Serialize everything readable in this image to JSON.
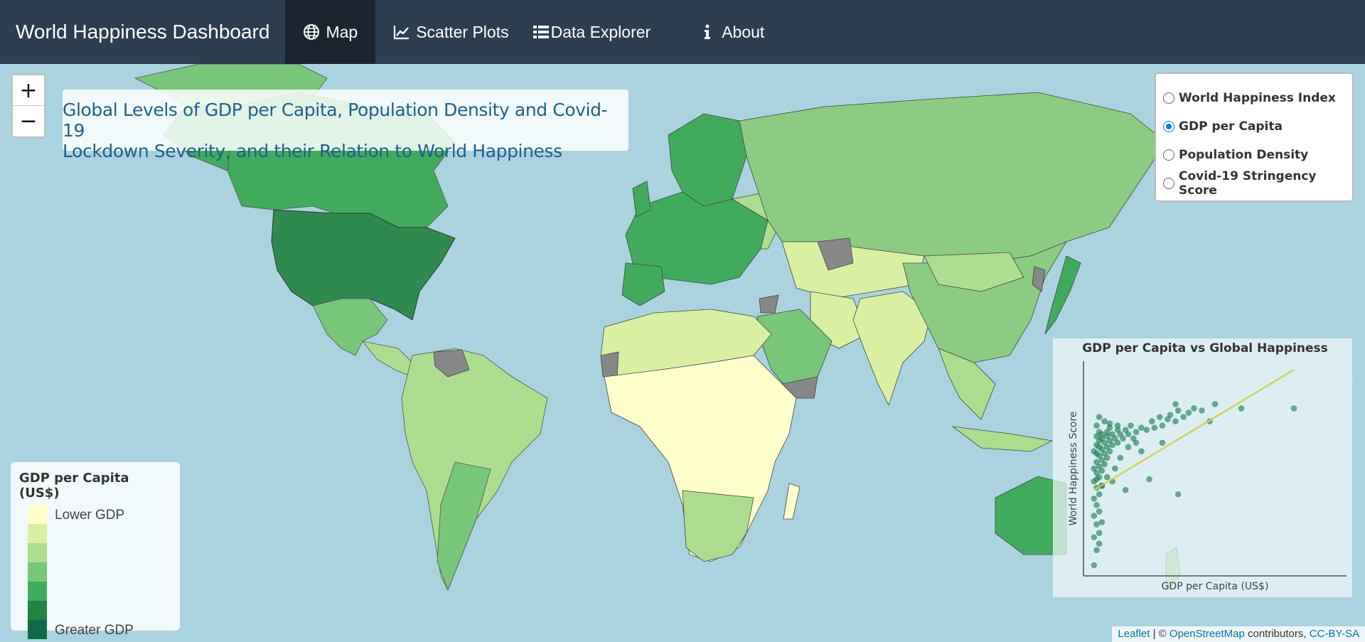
{
  "navbar": {
    "brand": "World Happiness Dashboard",
    "items": [
      {
        "label": "Map",
        "icon": "globe-icon",
        "active": true
      },
      {
        "label": "Scatter Plots",
        "icon": "line-chart-icon",
        "active": false
      },
      {
        "label": "Data Explorer",
        "icon": "list-icon",
        "active": false
      },
      {
        "label": "About",
        "icon": "info-icon",
        "active": false
      }
    ],
    "bg_color": "#2c3e50",
    "active_color": "#1a252f"
  },
  "map": {
    "zoom_in": "+",
    "zoom_out": "−",
    "title_line1": "Global Levels of GDP per Capita, Population Density and Covid-19",
    "title_line2": "Lockdown Severity, and their Relation to World Happiness",
    "layers": [
      {
        "label": "World Happiness Index",
        "checked": false
      },
      {
        "label": "GDP per Capita",
        "checked": true
      },
      {
        "label": "Population Density",
        "checked": false
      },
      {
        "label": "Covid-19 Stringency Score",
        "checked": false
      }
    ],
    "legend": {
      "title": "GDP per Capita (US$)",
      "low_label": "Lower GDP",
      "high_label": "Greater GDP",
      "colors": [
        "#ffffcc",
        "#d9f0a3",
        "#addd8e",
        "#78c679",
        "#41ab5d",
        "#238443",
        "#116a4a"
      ]
    },
    "attribution": {
      "leaflet": "Leaflet",
      "sep": " | © ",
      "osm": "OpenStreetMap",
      "contributors": " contributors, ",
      "license": "CC-BY-SA"
    }
  },
  "chart_data": {
    "type": "scatter",
    "title": "GDP per Capita vs Global Happiness",
    "xlabel": "GDP per Capita (US$)",
    "ylabel": "World Happiness Score",
    "grid": false,
    "point_color": "#1a7a50",
    "trend_color": "#d4cf4a",
    "points": [
      [
        0.04,
        0.05
      ],
      [
        0.05,
        0.12
      ],
      [
        0.04,
        0.18
      ],
      [
        0.06,
        0.2
      ],
      [
        0.05,
        0.24
      ],
      [
        0.04,
        0.28
      ],
      [
        0.06,
        0.3
      ],
      [
        0.05,
        0.33
      ],
      [
        0.04,
        0.36
      ],
      [
        0.06,
        0.38
      ],
      [
        0.05,
        0.41
      ],
      [
        0.07,
        0.42
      ],
      [
        0.04,
        0.44
      ],
      [
        0.06,
        0.46
      ],
      [
        0.05,
        0.48
      ],
      [
        0.07,
        0.49
      ],
      [
        0.04,
        0.5
      ],
      [
        0.06,
        0.51
      ],
      [
        0.08,
        0.52
      ],
      [
        0.05,
        0.53
      ],
      [
        0.07,
        0.54
      ],
      [
        0.09,
        0.55
      ],
      [
        0.06,
        0.56
      ],
      [
        0.05,
        0.57
      ],
      [
        0.08,
        0.57
      ],
      [
        0.04,
        0.58
      ],
      [
        0.1,
        0.58
      ],
      [
        0.07,
        0.59
      ],
      [
        0.06,
        0.6
      ],
      [
        0.09,
        0.6
      ],
      [
        0.05,
        0.61
      ],
      [
        0.11,
        0.61
      ],
      [
        0.08,
        0.62
      ],
      [
        0.06,
        0.63
      ],
      [
        0.13,
        0.62
      ],
      [
        0.1,
        0.63
      ],
      [
        0.07,
        0.64
      ],
      [
        0.05,
        0.65
      ],
      [
        0.12,
        0.64
      ],
      [
        0.09,
        0.65
      ],
      [
        0.15,
        0.64
      ],
      [
        0.07,
        0.66
      ],
      [
        0.11,
        0.66
      ],
      [
        0.14,
        0.66
      ],
      [
        0.06,
        0.67
      ],
      [
        0.17,
        0.66
      ],
      [
        0.09,
        0.67
      ],
      [
        0.13,
        0.68
      ],
      [
        0.2,
        0.67
      ],
      [
        0.16,
        0.68
      ],
      [
        0.22,
        0.69
      ],
      [
        0.18,
        0.7
      ],
      [
        0.24,
        0.68
      ],
      [
        0.27,
        0.69
      ],
      [
        0.3,
        0.7
      ],
      [
        0.26,
        0.72
      ],
      [
        0.32,
        0.73
      ],
      [
        0.29,
        0.74
      ],
      [
        0.35,
        0.72
      ],
      [
        0.33,
        0.75
      ],
      [
        0.38,
        0.74
      ],
      [
        0.36,
        0.77
      ],
      [
        0.4,
        0.76
      ],
      [
        0.42,
        0.78
      ],
      [
        0.45,
        0.77
      ],
      [
        0.5,
        0.8
      ],
      [
        0.6,
        0.78
      ],
      [
        0.48,
        0.72
      ],
      [
        0.25,
        0.45
      ],
      [
        0.16,
        0.4
      ],
      [
        0.36,
        0.38
      ],
      [
        0.3,
        0.62
      ],
      [
        0.05,
        0.7
      ],
      [
        0.08,
        0.72
      ],
      [
        0.06,
        0.74
      ],
      [
        0.1,
        0.71
      ],
      [
        0.07,
        0.42
      ],
      [
        0.05,
        0.45
      ],
      [
        0.07,
        0.25
      ],
      [
        0.06,
        0.15
      ],
      [
        0.2,
        0.62
      ],
      [
        0.22,
        0.58
      ],
      [
        0.12,
        0.5
      ],
      [
        0.14,
        0.55
      ],
      [
        0.09,
        0.46
      ],
      [
        0.11,
        0.44
      ],
      [
        0.17,
        0.6
      ],
      [
        0.19,
        0.64
      ],
      [
        0.8,
        0.78
      ],
      [
        0.35,
        0.8
      ],
      [
        0.1,
        0.69
      ],
      [
        0.13,
        0.7
      ]
    ],
    "trend": [
      [
        0.04,
        0.4
      ],
      [
        0.8,
        0.96
      ]
    ]
  }
}
